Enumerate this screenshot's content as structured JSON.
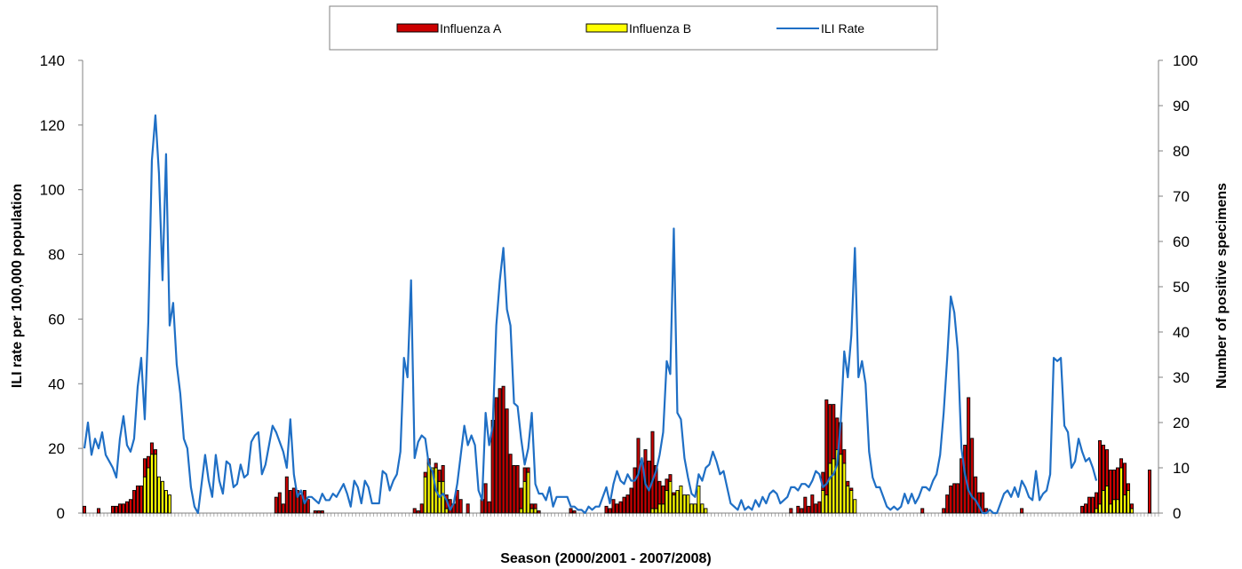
{
  "chart_data": {
    "type": "bar+line",
    "title": "",
    "xlabel": "Season (2000/2001 - 2007/2008)",
    "ylabel_left": "ILI rate per 100,000 population",
    "ylabel_right": "Number of positive specimens",
    "ylim_left": [
      0,
      140
    ],
    "ylim_right": [
      0,
      100
    ],
    "yticks_left": [
      "0",
      "20",
      "40",
      "60",
      "80",
      "100",
      "120",
      "140"
    ],
    "yticks_right": [
      "0",
      "10",
      "20",
      "30",
      "40",
      "50",
      "60",
      "70",
      "80",
      "90",
      "100"
    ],
    "legend_position": "top-center",
    "grid": false,
    "colors": {
      "influenza_a": "#cc0000",
      "influenza_b": "#ffff00",
      "ili_rate": "#1f6fc5",
      "axis": "#808080"
    },
    "series": [
      {
        "name": "Influenza A",
        "type": "bar",
        "axis": "right",
        "values": [
          1.5,
          0,
          0,
          0,
          1,
          0,
          0,
          0,
          1.5,
          1.5,
          2,
          2,
          2.5,
          3,
          5,
          6,
          6,
          4,
          2.5,
          2.5,
          1,
          0,
          0,
          0,
          0,
          0,
          0,
          0,
          0,
          0,
          0,
          0,
          0,
          0,
          0,
          0,
          0,
          0,
          0,
          0,
          0,
          0,
          0,
          0,
          0,
          0,
          0,
          0,
          0,
          0,
          0,
          0,
          0,
          0,
          3.5,
          4.5,
          2,
          8,
          5,
          5.5,
          5,
          4,
          5,
          3,
          0,
          0.5,
          0.5,
          0.5,
          0,
          0,
          0,
          0,
          0,
          0,
          0,
          0,
          0,
          0,
          0,
          0,
          0,
          0,
          0,
          0,
          0,
          0,
          0,
          0,
          0,
          0,
          0,
          0,
          0,
          1,
          0.5,
          2,
          1,
          1,
          0,
          1,
          2.5,
          3.5,
          3,
          3,
          2,
          5,
          3,
          0,
          2,
          0,
          0,
          0,
          3,
          6.5,
          2.5,
          20.5,
          25.5,
          27.5,
          28,
          23,
          13,
          10.5,
          10.5,
          4.5,
          3,
          1,
          1,
          1,
          0.5,
          0,
          0,
          0,
          0,
          0,
          0,
          0,
          0,
          1,
          0.5,
          0,
          0,
          0,
          0,
          0,
          0,
          0,
          0,
          1.5,
          1,
          3,
          2,
          2.5,
          3.5,
          4,
          5.5,
          10,
          16.5,
          11,
          14,
          11.5,
          17,
          9.5,
          5,
          4,
          2.5,
          1.5,
          0.5,
          0,
          0,
          0,
          0,
          0,
          0,
          0,
          0,
          0,
          0,
          0,
          0,
          0,
          0,
          0,
          0,
          0,
          0,
          0,
          0,
          0,
          0,
          0,
          0,
          0,
          0,
          0,
          0,
          0,
          0,
          0,
          0,
          1,
          0,
          1.5,
          1,
          3.5,
          1.5,
          4,
          2,
          2.5,
          4,
          21,
          13,
          12,
          7,
          7,
          3,
          1,
          0.5,
          0,
          0,
          0,
          0,
          0,
          0,
          0,
          0,
          0,
          0,
          0,
          0,
          0,
          0,
          0,
          0,
          0,
          0,
          0,
          1,
          0,
          0,
          0,
          0,
          0,
          1,
          4,
          6,
          6.5,
          6.5,
          12,
          15,
          25.5,
          16.5,
          8,
          4.5,
          4.5,
          1,
          0,
          0,
          0,
          0,
          0,
          0,
          0,
          0,
          0,
          1,
          0,
          0,
          0,
          0,
          0,
          0,
          0,
          0,
          0,
          0,
          0,
          0,
          0,
          0,
          0,
          0,
          1.5,
          2,
          3.5,
          3.5,
          3.5,
          14,
          10,
          8,
          7.5,
          6.5,
          7,
          2,
          7,
          1.5,
          1,
          0,
          0,
          0,
          0,
          9.5
        ]
      },
      {
        "name": "Influenza B",
        "type": "bar",
        "axis": "right",
        "values": [
          0,
          0,
          0,
          0,
          0,
          0,
          0,
          0,
          0,
          0,
          0,
          0,
          0,
          0,
          0,
          0,
          0,
          8,
          10,
          13,
          13,
          8,
          7,
          5,
          4,
          0,
          0,
          0,
          0,
          0,
          0,
          0,
          0,
          0,
          0,
          0,
          0,
          0,
          0,
          0,
          0,
          0,
          0,
          0,
          0,
          0,
          0,
          0,
          0,
          0,
          0,
          0,
          0,
          0,
          0,
          0,
          0,
          0,
          0,
          0,
          0,
          0,
          0,
          0,
          0,
          0,
          0,
          0,
          0,
          0,
          0,
          0,
          0,
          0,
          0,
          0,
          0,
          0,
          0,
          0,
          0,
          0,
          0,
          0,
          0,
          0,
          0,
          0,
          0,
          0,
          0,
          0,
          0,
          0,
          0,
          0,
          8,
          11,
          10,
          10,
          7,
          7,
          1,
          0,
          0,
          0,
          0,
          0,
          0,
          0,
          0,
          0,
          0,
          0,
          0,
          0,
          0,
          0,
          0,
          0,
          0,
          0,
          0,
          1,
          7,
          9,
          1,
          1,
          0,
          0,
          0,
          0,
          0,
          0,
          0,
          0,
          0,
          0,
          0,
          0,
          0,
          0,
          0,
          0,
          0,
          0,
          0,
          0,
          0,
          0,
          0,
          0,
          0,
          0,
          0,
          0,
          0,
          0,
          0,
          0,
          1,
          1,
          2,
          2,
          5,
          7,
          4,
          5,
          6,
          4,
          4,
          2,
          2,
          6,
          2,
          1,
          0,
          0,
          0,
          0,
          0,
          0,
          0,
          0,
          0,
          0,
          0,
          0,
          0,
          0,
          0,
          0,
          0,
          0,
          0,
          0,
          0,
          0,
          0,
          0,
          0,
          0,
          0,
          0,
          0,
          0,
          0,
          0,
          5,
          4,
          11,
          12,
          14,
          13,
          11,
          6,
          5,
          3,
          0,
          0,
          0,
          0,
          0,
          0,
          0,
          0,
          0,
          0,
          0,
          0,
          0,
          0,
          0,
          0,
          0,
          0,
          0,
          0,
          0,
          0,
          0,
          0,
          0,
          0,
          0,
          0,
          0,
          0,
          0,
          0,
          0,
          0,
          0,
          0,
          0,
          0,
          0,
          0,
          0,
          0,
          0,
          0,
          0,
          0,
          0,
          0,
          0,
          0,
          0,
          0,
          0,
          0,
          0,
          0,
          0,
          0,
          0,
          0,
          0,
          0,
          0,
          0,
          0,
          0,
          0,
          1,
          2,
          5,
          6,
          2,
          3,
          3,
          10,
          4,
          5,
          1,
          0,
          0,
          0,
          0,
          0,
          0,
          0
        ]
      },
      {
        "name": "ILI Rate",
        "type": "line",
        "axis": "left",
        "values": [
          20,
          28,
          18,
          23,
          20,
          25,
          18,
          16,
          14,
          11,
          23,
          30,
          21,
          19,
          23,
          39,
          48,
          29,
          59,
          109,
          123,
          105,
          72,
          111,
          58,
          65,
          46,
          37,
          23,
          20,
          8,
          2,
          0,
          9,
          18,
          10,
          5,
          18,
          10,
          6,
          16,
          15,
          8,
          9,
          15,
          11,
          12,
          22,
          24,
          25,
          12,
          15,
          21,
          27,
          25,
          22,
          19,
          14,
          29,
          12,
          5,
          7,
          3,
          5,
          5,
          4,
          3,
          6,
          4,
          4,
          6,
          5,
          7,
          9,
          6,
          2,
          10,
          8,
          3,
          10,
          8,
          3,
          3,
          3,
          13,
          12,
          7,
          10,
          12,
          19,
          48,
          42,
          72,
          17,
          22,
          24,
          23,
          15,
          13,
          7,
          5,
          6,
          4,
          1,
          3,
          9,
          18,
          27,
          21,
          24,
          21,
          7,
          4,
          31,
          21,
          27,
          58,
          72,
          82,
          63,
          58,
          34,
          33,
          23,
          15,
          20,
          31,
          9,
          6,
          6,
          4,
          8,
          2,
          5,
          5,
          5,
          5,
          2,
          2,
          1,
          1,
          0,
          2,
          1,
          2,
          2,
          5,
          8,
          3,
          9,
          13,
          10,
          9,
          12,
          10,
          10,
          12,
          17,
          9,
          7,
          10,
          13,
          18,
          25,
          47,
          43,
          88,
          31,
          29,
          17,
          11,
          6,
          5,
          12,
          10,
          14,
          15,
          19,
          16,
          12,
          13,
          8,
          3,
          2,
          1,
          4,
          1,
          2,
          1,
          4,
          2,
          5,
          3,
          6,
          7,
          6,
          3,
          4,
          5,
          8,
          8,
          7,
          9,
          9,
          8,
          10,
          13,
          12,
          8,
          9,
          11,
          12,
          15,
          28,
          50,
          42,
          55,
          82,
          42,
          47,
          40,
          19,
          11,
          8,
          8,
          5,
          2,
          1,
          2,
          1,
          2,
          6,
          3,
          6,
          3,
          5,
          8,
          8,
          7,
          10,
          12,
          18,
          31,
          48,
          67,
          62,
          50,
          20,
          12,
          7,
          5,
          4,
          2,
          0,
          0,
          1,
          0,
          0,
          3,
          6,
          7,
          5,
          8,
          5,
          10,
          8,
          5,
          4,
          13,
          4,
          6,
          7,
          12,
          48,
          47,
          48,
          27,
          25,
          14,
          16,
          23,
          19,
          16,
          17,
          14,
          10
        ]
      }
    ]
  },
  "legend": {
    "items": [
      "Influenza A",
      "Influenza B",
      "ILI Rate"
    ]
  }
}
